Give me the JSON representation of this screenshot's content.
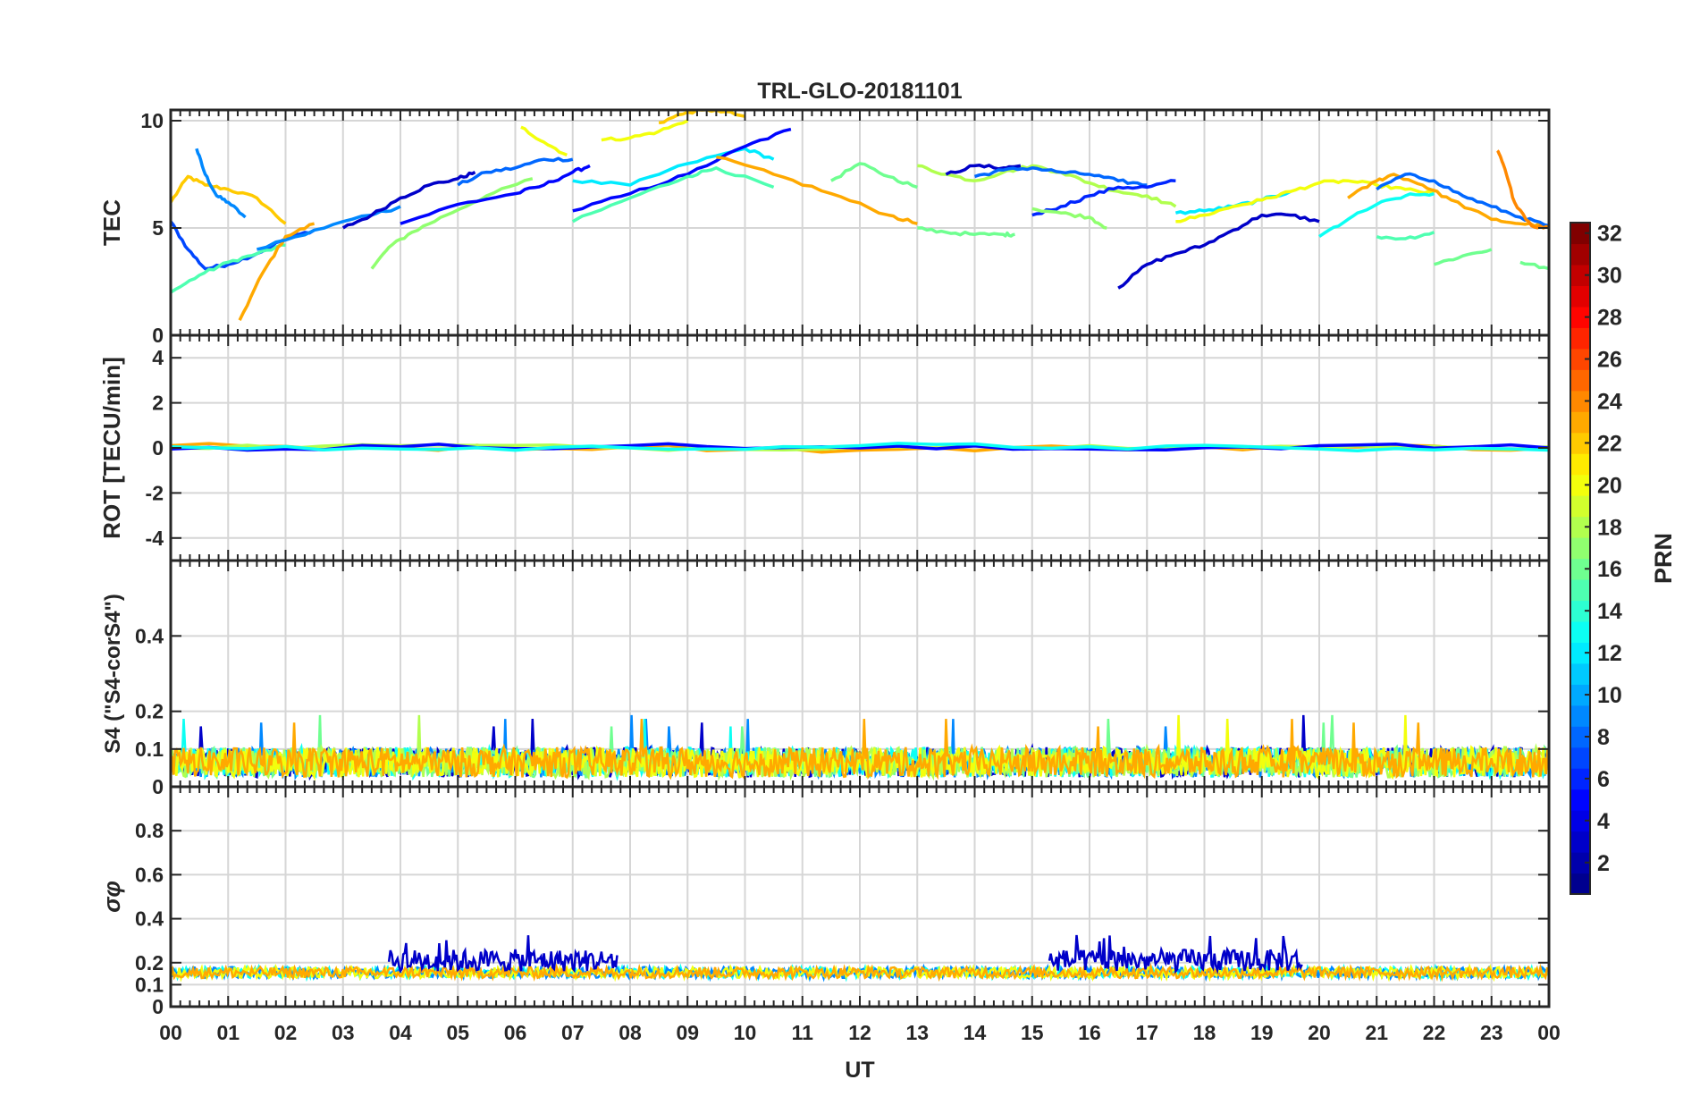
{
  "chart_data": {
    "type": "line",
    "title": "TRL-GLO-20181101",
    "xlabel": "UT",
    "x_ticks": [
      "00",
      "01",
      "02",
      "03",
      "04",
      "05",
      "06",
      "07",
      "08",
      "09",
      "10",
      "11",
      "12",
      "13",
      "14",
      "15",
      "16",
      "17",
      "18",
      "19",
      "20",
      "21",
      "22",
      "23",
      "00"
    ],
    "xlim": [
      0,
      24
    ],
    "colorbar": {
      "label": "PRN",
      "range": [
        1,
        32
      ],
      "ticks": [
        "2",
        "4",
        "6",
        "8",
        "10",
        "12",
        "14",
        "16",
        "18",
        "20",
        "22",
        "24",
        "26",
        "28",
        "30",
        "32"
      ],
      "colormap": [
        "#00008f",
        "#0000ff",
        "#0080ff",
        "#00ffff",
        "#80ff80",
        "#ffff00",
        "#ff8000",
        "#ff0000",
        "#800000"
      ]
    },
    "panels": [
      {
        "id": "tec",
        "ylabel": "TEC",
        "ylim": [
          0,
          10.5
        ],
        "yticks": [
          0,
          5,
          10
        ],
        "ytick_labels": [
          "0",
          "5",
          "10"
        ],
        "series": [
          {
            "prn": 22,
            "x": [
              0.0,
              0.3,
              0.6,
              1.0,
              1.5,
              2.0
            ],
            "y": [
              6.2,
              7.4,
              7.0,
              6.8,
              6.4,
              5.2
            ]
          },
          {
            "prn": 9,
            "x": [
              0.45,
              0.6,
              0.8,
              1.0,
              1.3
            ],
            "y": [
              8.7,
              7.5,
              6.5,
              6.2,
              5.5
            ]
          },
          {
            "prn": 7,
            "x": [
              0.0,
              0.3,
              0.6,
              1.0,
              1.5,
              2.0,
              2.5
            ],
            "y": [
              5.3,
              4.0,
              3.1,
              3.3,
              3.8,
              4.5,
              4.9
            ]
          },
          {
            "prn": 15,
            "x": [
              0.0,
              0.5,
              1.0,
              1.5,
              2.0
            ],
            "y": [
              2.0,
              2.8,
              3.4,
              3.8,
              4.2
            ]
          },
          {
            "prn": 23,
            "x": [
              1.2,
              1.6,
              2.0,
              2.5
            ],
            "y": [
              0.7,
              2.9,
              4.6,
              5.2
            ]
          },
          {
            "prn": 9,
            "x": [
              1.5,
              2.5,
              3.5,
              4.0
            ],
            "y": [
              4.0,
              4.9,
              5.6,
              6.0
            ]
          },
          {
            "prn": 17,
            "x": [
              3.5,
              3.8,
              4.2,
              4.8,
              5.5,
              6.3
            ],
            "y": [
              3.1,
              4.1,
              4.8,
              5.6,
              6.5,
              7.3
            ]
          },
          {
            "prn": 3,
            "x": [
              3.0,
              3.5,
              4.0,
              4.5,
              5.0,
              5.3
            ],
            "y": [
              5.0,
              5.6,
              6.4,
              7.0,
              7.3,
              7.6
            ]
          },
          {
            "prn": 8,
            "x": [
              5.0,
              5.5,
              6.0,
              6.5,
              7.0
            ],
            "y": [
              7.0,
              7.6,
              7.8,
              8.2,
              8.2
            ]
          },
          {
            "prn": 5,
            "x": [
              4.0,
              5.0,
              6.0,
              6.5,
              7.0,
              7.3
            ],
            "y": [
              5.2,
              6.1,
              6.6,
              7.0,
              7.6,
              7.9
            ]
          },
          {
            "prn": 12,
            "x": [
              7.0,
              8.0,
              9.0,
              10.0,
              10.5
            ],
            "y": [
              7.2,
              7.0,
              8.0,
              8.7,
              8.2
            ]
          },
          {
            "prn": 5,
            "x": [
              7.0,
              8.0,
              9.0,
              10.0,
              10.8
            ],
            "y": [
              5.8,
              6.6,
              7.5,
              8.8,
              9.6
            ]
          },
          {
            "prn": 20,
            "x": [
              6.1,
              6.5,
              6.9
            ],
            "y": [
              9.7,
              9.0,
              8.4
            ]
          },
          {
            "prn": 20,
            "x": [
              7.5,
              8.0,
              8.5,
              9.0
            ],
            "y": [
              9.1,
              9.2,
              9.5,
              10.0
            ]
          },
          {
            "prn": 22,
            "x": [
              8.5,
              9.0,
              9.5,
              10.0
            ],
            "y": [
              9.9,
              10.4,
              10.5,
              10.2
            ]
          },
          {
            "prn": 15,
            "x": [
              7.0,
              8.0,
              9.0,
              9.5,
              10.5
            ],
            "y": [
              5.3,
              6.4,
              7.4,
              7.8,
              6.9
            ]
          },
          {
            "prn": 23,
            "x": [
              9.5,
              10.5,
              11.5,
              12.5,
              13.0
            ],
            "y": [
              8.3,
              7.5,
              6.6,
              5.6,
              5.2
            ]
          },
          {
            "prn": 16,
            "x": [
              11.5,
              12.0,
              12.5,
              13.0
            ],
            "y": [
              7.2,
              8.0,
              7.4,
              6.9
            ]
          },
          {
            "prn": 18,
            "x": [
              13.0,
              13.5,
              14.0,
              14.5,
              15.0,
              15.5,
              16.0,
              16.5,
              17.0,
              17.5
            ],
            "y": [
              7.9,
              7.5,
              7.2,
              7.6,
              7.9,
              7.6,
              7.1,
              6.7,
              6.5,
              6.0
            ]
          },
          {
            "prn": 3,
            "x": [
              13.5,
              14.0,
              14.5,
              14.8
            ],
            "y": [
              7.5,
              7.9,
              7.8,
              7.9
            ]
          },
          {
            "prn": 8,
            "x": [
              14.0,
              14.5,
              15.0,
              15.5,
              16.0,
              16.5,
              17.0
            ],
            "y": [
              7.4,
              7.7,
              7.8,
              7.6,
              7.5,
              7.2,
              7.0
            ]
          },
          {
            "prn": 6,
            "x": [
              15.0,
              15.5,
              16.0,
              16.5,
              17.0,
              17.5
            ],
            "y": [
              5.6,
              6.0,
              6.5,
              6.9,
              6.9,
              7.2
            ]
          },
          {
            "prn": 16,
            "x": [
              13.0,
              13.5,
              14.0,
              14.5,
              14.7
            ],
            "y": [
              5.0,
              4.8,
              4.7,
              4.7,
              4.7
            ]
          },
          {
            "prn": 17,
            "x": [
              15.0,
              15.5,
              16.0,
              16.3
            ],
            "y": [
              5.9,
              5.7,
              5.5,
              5.0
            ]
          },
          {
            "prn": 3,
            "x": [
              16.5,
              17.0,
              17.5,
              18.0,
              18.5,
              19.0,
              19.5,
              20.0
            ],
            "y": [
              2.2,
              3.3,
              3.8,
              4.2,
              4.9,
              5.6,
              5.6,
              5.3
            ]
          },
          {
            "prn": 12,
            "x": [
              17.5,
              18.0,
              18.5,
              19.0,
              19.5
            ],
            "y": [
              5.7,
              5.8,
              6.0,
              6.3,
              6.7
            ]
          },
          {
            "prn": 20,
            "x": [
              17.5,
              18.0,
              18.5,
              19.0,
              19.5,
              20.0,
              20.5,
              21.0,
              21.5,
              22.0
            ],
            "y": [
              5.3,
              5.6,
              6.0,
              6.3,
              6.7,
              7.1,
              7.2,
              7.0,
              6.8,
              6.6
            ]
          },
          {
            "prn": 13,
            "x": [
              20.0,
              20.5,
              21.0,
              21.5,
              22.0
            ],
            "y": [
              4.6,
              5.4,
              6.1,
              6.5,
              6.6
            ]
          },
          {
            "prn": 23,
            "x": [
              20.5,
              21.0,
              21.3,
              21.8,
              22.3,
              23.0,
              23.5,
              24.0
            ],
            "y": [
              6.4,
              7.2,
              7.5,
              7.0,
              6.3,
              5.4,
              5.2,
              5.1
            ]
          },
          {
            "prn": 8,
            "x": [
              21.0,
              21.5,
              22.0,
              22.5,
              23.0,
              23.5,
              24.0
            ],
            "y": [
              6.8,
              7.5,
              7.2,
              6.5,
              6.0,
              5.5,
              5.1
            ]
          },
          {
            "prn": 24,
            "x": [
              23.1,
              23.2,
              23.4,
              23.7,
              24.0
            ],
            "y": [
              8.6,
              8.0,
              6.2,
              5.1,
              5.0
            ]
          },
          {
            "prn": 15,
            "x": [
              21.0,
              21.5,
              22.0
            ],
            "y": [
              4.6,
              4.5,
              4.8
            ]
          },
          {
            "prn": 16,
            "x": [
              22.0,
              22.5,
              23.0
            ],
            "y": [
              3.3,
              3.7,
              4.0
            ]
          },
          {
            "prn": 16,
            "x": [
              23.5,
              24.0
            ],
            "y": [
              3.4,
              3.1
            ]
          }
        ]
      },
      {
        "id": "rot",
        "ylabel": "ROT [TECU/min]",
        "ylim": [
          -5,
          5
        ],
        "yticks": [
          -4,
          -2,
          0,
          2,
          4
        ],
        "ytick_labels": [
          "-4",
          "-2",
          "0",
          "2",
          "4"
        ],
        "series": [
          {
            "prn": 23,
            "x": [
              0,
              4,
              8,
              12,
              16,
              20,
              24
            ],
            "y": [
              0.1,
              0.0,
              0.05,
              -0.1,
              0.0,
              0.05,
              0.0
            ]
          },
          {
            "prn": 18,
            "x": [
              0,
              4,
              8,
              12,
              16,
              20,
              24
            ],
            "y": [
              0.0,
              0.1,
              0.0,
              0.05,
              0.1,
              0.0,
              0.05
            ]
          },
          {
            "prn": 5,
            "x": [
              0,
              4,
              8,
              12,
              16,
              20,
              24
            ],
            "y": [
              -0.05,
              0.05,
              0.1,
              0.0,
              -0.05,
              0.1,
              0.0
            ]
          },
          {
            "prn": 13,
            "x": [
              0,
              4,
              8,
              12,
              16,
              20,
              24
            ],
            "y": [
              0.05,
              -0.05,
              0.0,
              0.1,
              0.05,
              -0.05,
              -0.1
            ]
          }
        ]
      },
      {
        "id": "s4",
        "ylabel": "S4 (\"S4-corS4\")",
        "ylim": [
          0,
          0.6
        ],
        "yticks": [
          0,
          0.1,
          0.2,
          0.4
        ],
        "ytick_labels": [
          "0",
          "0.1",
          "0.2",
          "0.4"
        ],
        "series_summary": {
          "baseline": 0.05,
          "typical_max": 0.12,
          "peaks": [
            0.18,
            0.19,
            0.17,
            0.16
          ]
        }
      },
      {
        "id": "sigma",
        "ylabel": "σφ",
        "ylim": [
          0,
          1
        ],
        "yticks": [
          0,
          0.1,
          0.2,
          0.4,
          0.6,
          0.8
        ],
        "ytick_labels": [
          "0",
          "0.1",
          "0.2",
          "0.4",
          "0.6",
          "0.8"
        ],
        "series_summary": {
          "baseline": 0.15,
          "prn3_enhanced_ranges": [
            [
              3.8,
              7.8
            ],
            [
              15.3,
              19.7
            ]
          ],
          "max": 0.37
        }
      }
    ]
  }
}
